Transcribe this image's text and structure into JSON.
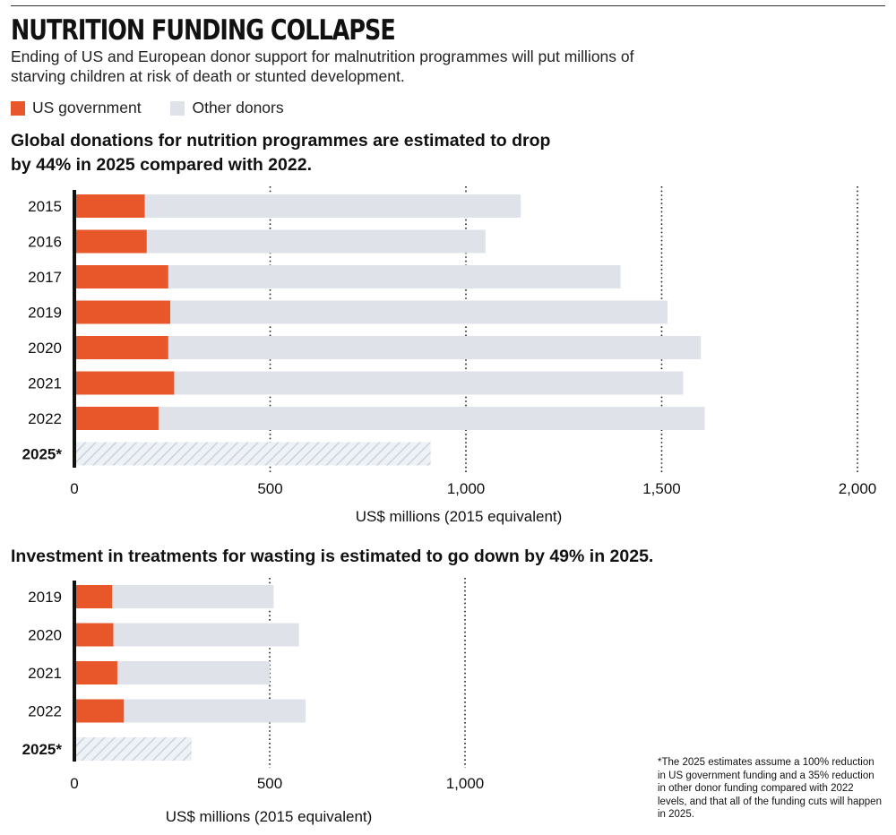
{
  "header": {
    "title": "NUTRITION FUNDING COLLAPSE",
    "subtitle": "Ending of US and European donor support for malnutrition programmes will put millions of starving children at risk of death or stunted development."
  },
  "legend": {
    "us_label": "US government",
    "other_label": "Other donors"
  },
  "colors": {
    "us": "#e8572a",
    "other": "#dfe3e9",
    "estimate_stripe": "#c9d3de"
  },
  "chart_data": [
    {
      "type": "bar",
      "orientation": "horizontal",
      "stacked": true,
      "title": "Global donations for nutrition programmes are estimated to drop by 44% in 2025 compared with 2022.",
      "xlabel": "US$ millions (2015 equivalent)",
      "xlim": [
        0,
        2000
      ],
      "xticks": [
        0,
        500,
        1000,
        1500,
        2000
      ],
      "xtick_labels": [
        "0",
        "500",
        "1,000",
        "1,500",
        "2,000"
      ],
      "categories": [
        "2015",
        "2016",
        "2017",
        "2019",
        "2020",
        "2021",
        "2022",
        "2025*"
      ],
      "estimate_category": "2025*",
      "series": [
        {
          "name": "US government",
          "values": [
            180,
            185,
            240,
            245,
            240,
            255,
            215,
            0
          ]
        },
        {
          "name": "Other donors",
          "values": [
            960,
            865,
            1155,
            1270,
            1360,
            1300,
            1395,
            910
          ]
        }
      ]
    },
    {
      "type": "bar",
      "orientation": "horizontal",
      "stacked": true,
      "title": "Investment in treatments for wasting is estimated to go down by 49% in 2025.",
      "xlabel": "US$ millions (2015 equivalent)",
      "xlim": [
        0,
        1000
      ],
      "xticks": [
        0,
        500,
        1000
      ],
      "xtick_labels": [
        "0",
        "500",
        "1,000"
      ],
      "categories": [
        "2019",
        "2020",
        "2021",
        "2022",
        "2025*"
      ],
      "estimate_category": "2025*",
      "series": [
        {
          "name": "US government",
          "values": [
            97,
            100,
            110,
            127,
            0
          ]
        },
        {
          "name": "Other donors",
          "values": [
            413,
            475,
            390,
            465,
            300
          ]
        }
      ]
    }
  ],
  "footnote": "*The 2025 estimates assume a 100% reduction in US government funding and a 35% reduction in other donor funding compared with 2022 levels, and that all of the funding cuts will happen in 2025."
}
